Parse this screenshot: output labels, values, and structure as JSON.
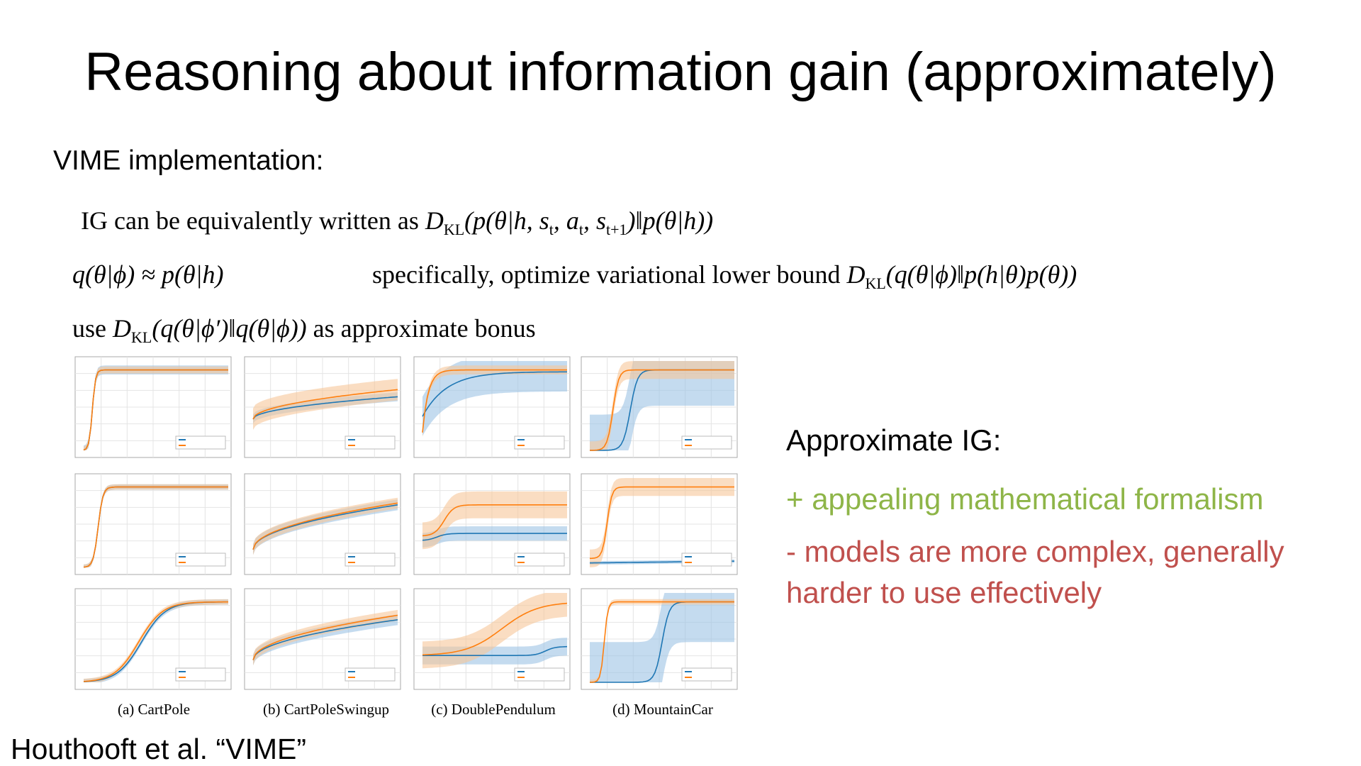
{
  "header": {
    "title": "Reasoning about information gain (approximately)"
  },
  "section": {
    "heading": "VIME implementation:"
  },
  "formulas": [
    [
      {
        "text": "IG can be equivalently written as ",
        "role": "text"
      },
      {
        "text": "D",
        "role": "math"
      },
      {
        "text": "KL",
        "role": "sub"
      },
      {
        "text": "(p(θ|h, s",
        "role": "math"
      },
      {
        "text": "t",
        "role": "sub"
      },
      {
        "text": ", a",
        "role": "math"
      },
      {
        "text": "t",
        "role": "sub"
      },
      {
        "text": ", s",
        "role": "math"
      },
      {
        "text": "t+1",
        "role": "sub"
      },
      {
        "text": ")‖p(θ|h))",
        "role": "math"
      }
    ],
    [
      {
        "text": "q(θ|ϕ) ≈ p(θ|h)",
        "role": "math"
      }
    ],
    [
      {
        "text": "specifically, optimize variational lower bound ",
        "role": "text"
      },
      {
        "text": "D",
        "role": "math"
      },
      {
        "text": "KL",
        "role": "sub"
      },
      {
        "text": "(q(θ|ϕ)‖p(h|θ)p(θ))",
        "role": "math"
      }
    ],
    [
      {
        "text": "use ",
        "role": "text"
      },
      {
        "text": "D",
        "role": "math"
      },
      {
        "text": "KL",
        "role": "sub"
      },
      {
        "text": "(q(θ|ϕ′)‖q(θ|ϕ))",
        "role": "math"
      },
      {
        "text": " as approximate bonus",
        "role": "text"
      }
    ]
  ],
  "figure": {
    "captions": [
      "(a) CartPole",
      "(b) CartPoleSwingup",
      "(c) DoublePendulum",
      "(d) MountainCar"
    ]
  },
  "summary": {
    "heading": "Approximate IG:",
    "pro": "+ appealing mathematical formalism",
    "con": [
      "- models are more complex, generally",
      "harder to use effectively"
    ]
  },
  "citation": "Houthooft et al. “VIME”"
}
